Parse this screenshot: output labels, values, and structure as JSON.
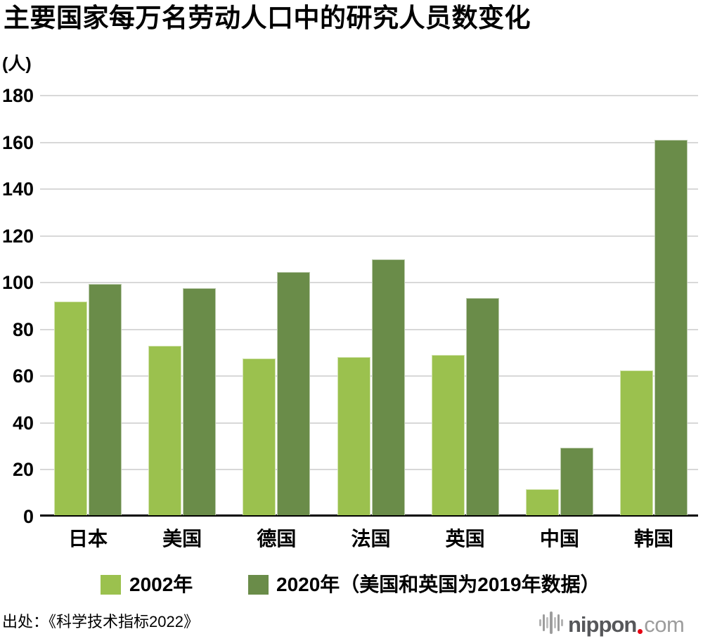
{
  "title": "主要国家每万名劳动人口中的研究人员数变化",
  "unit_label": "(人)",
  "source": "出处：《科学技术指标2022》",
  "legend": [
    {
      "label": "2002年",
      "color": "#9bc14e"
    },
    {
      "label": "2020年（美国和英国为2019年数据）",
      "color": "#6a8c49"
    }
  ],
  "colors": {
    "series_2002": "#9bc14e",
    "series_2020": "#6a8c49",
    "gridline": "#d8d8d8",
    "axis": "#000000",
    "logo_dark_gray": "#56575a",
    "logo_light_gray": "#9d9d9d",
    "logo_red": "#e60012"
  },
  "logo": {
    "main": "nippon",
    "suffix": "com"
  },
  "chart_data": {
    "type": "bar",
    "title": "主要国家每万名劳动人口中的研究人员数变化",
    "xlabel": "",
    "ylabel": "人",
    "ylim": [
      0,
      180
    ],
    "yticks": [
      0,
      20,
      40,
      60,
      80,
      100,
      120,
      140,
      160,
      180
    ],
    "grid": true,
    "legend_position": "bottom",
    "categories": [
      "日本",
      "美国",
      "德国",
      "法国",
      "英国",
      "中国",
      "韩国"
    ],
    "series": [
      {
        "name": "2002年",
        "color": "#9bc14e",
        "values": [
          91.5,
          72.5,
          67,
          67.5,
          68.5,
          11,
          62
        ]
      },
      {
        "name": "2020年（美国和英国为2019年数据）",
        "color": "#6a8c49",
        "values": [
          99,
          97,
          104,
          109.5,
          93,
          29,
          160.5
        ]
      }
    ]
  }
}
